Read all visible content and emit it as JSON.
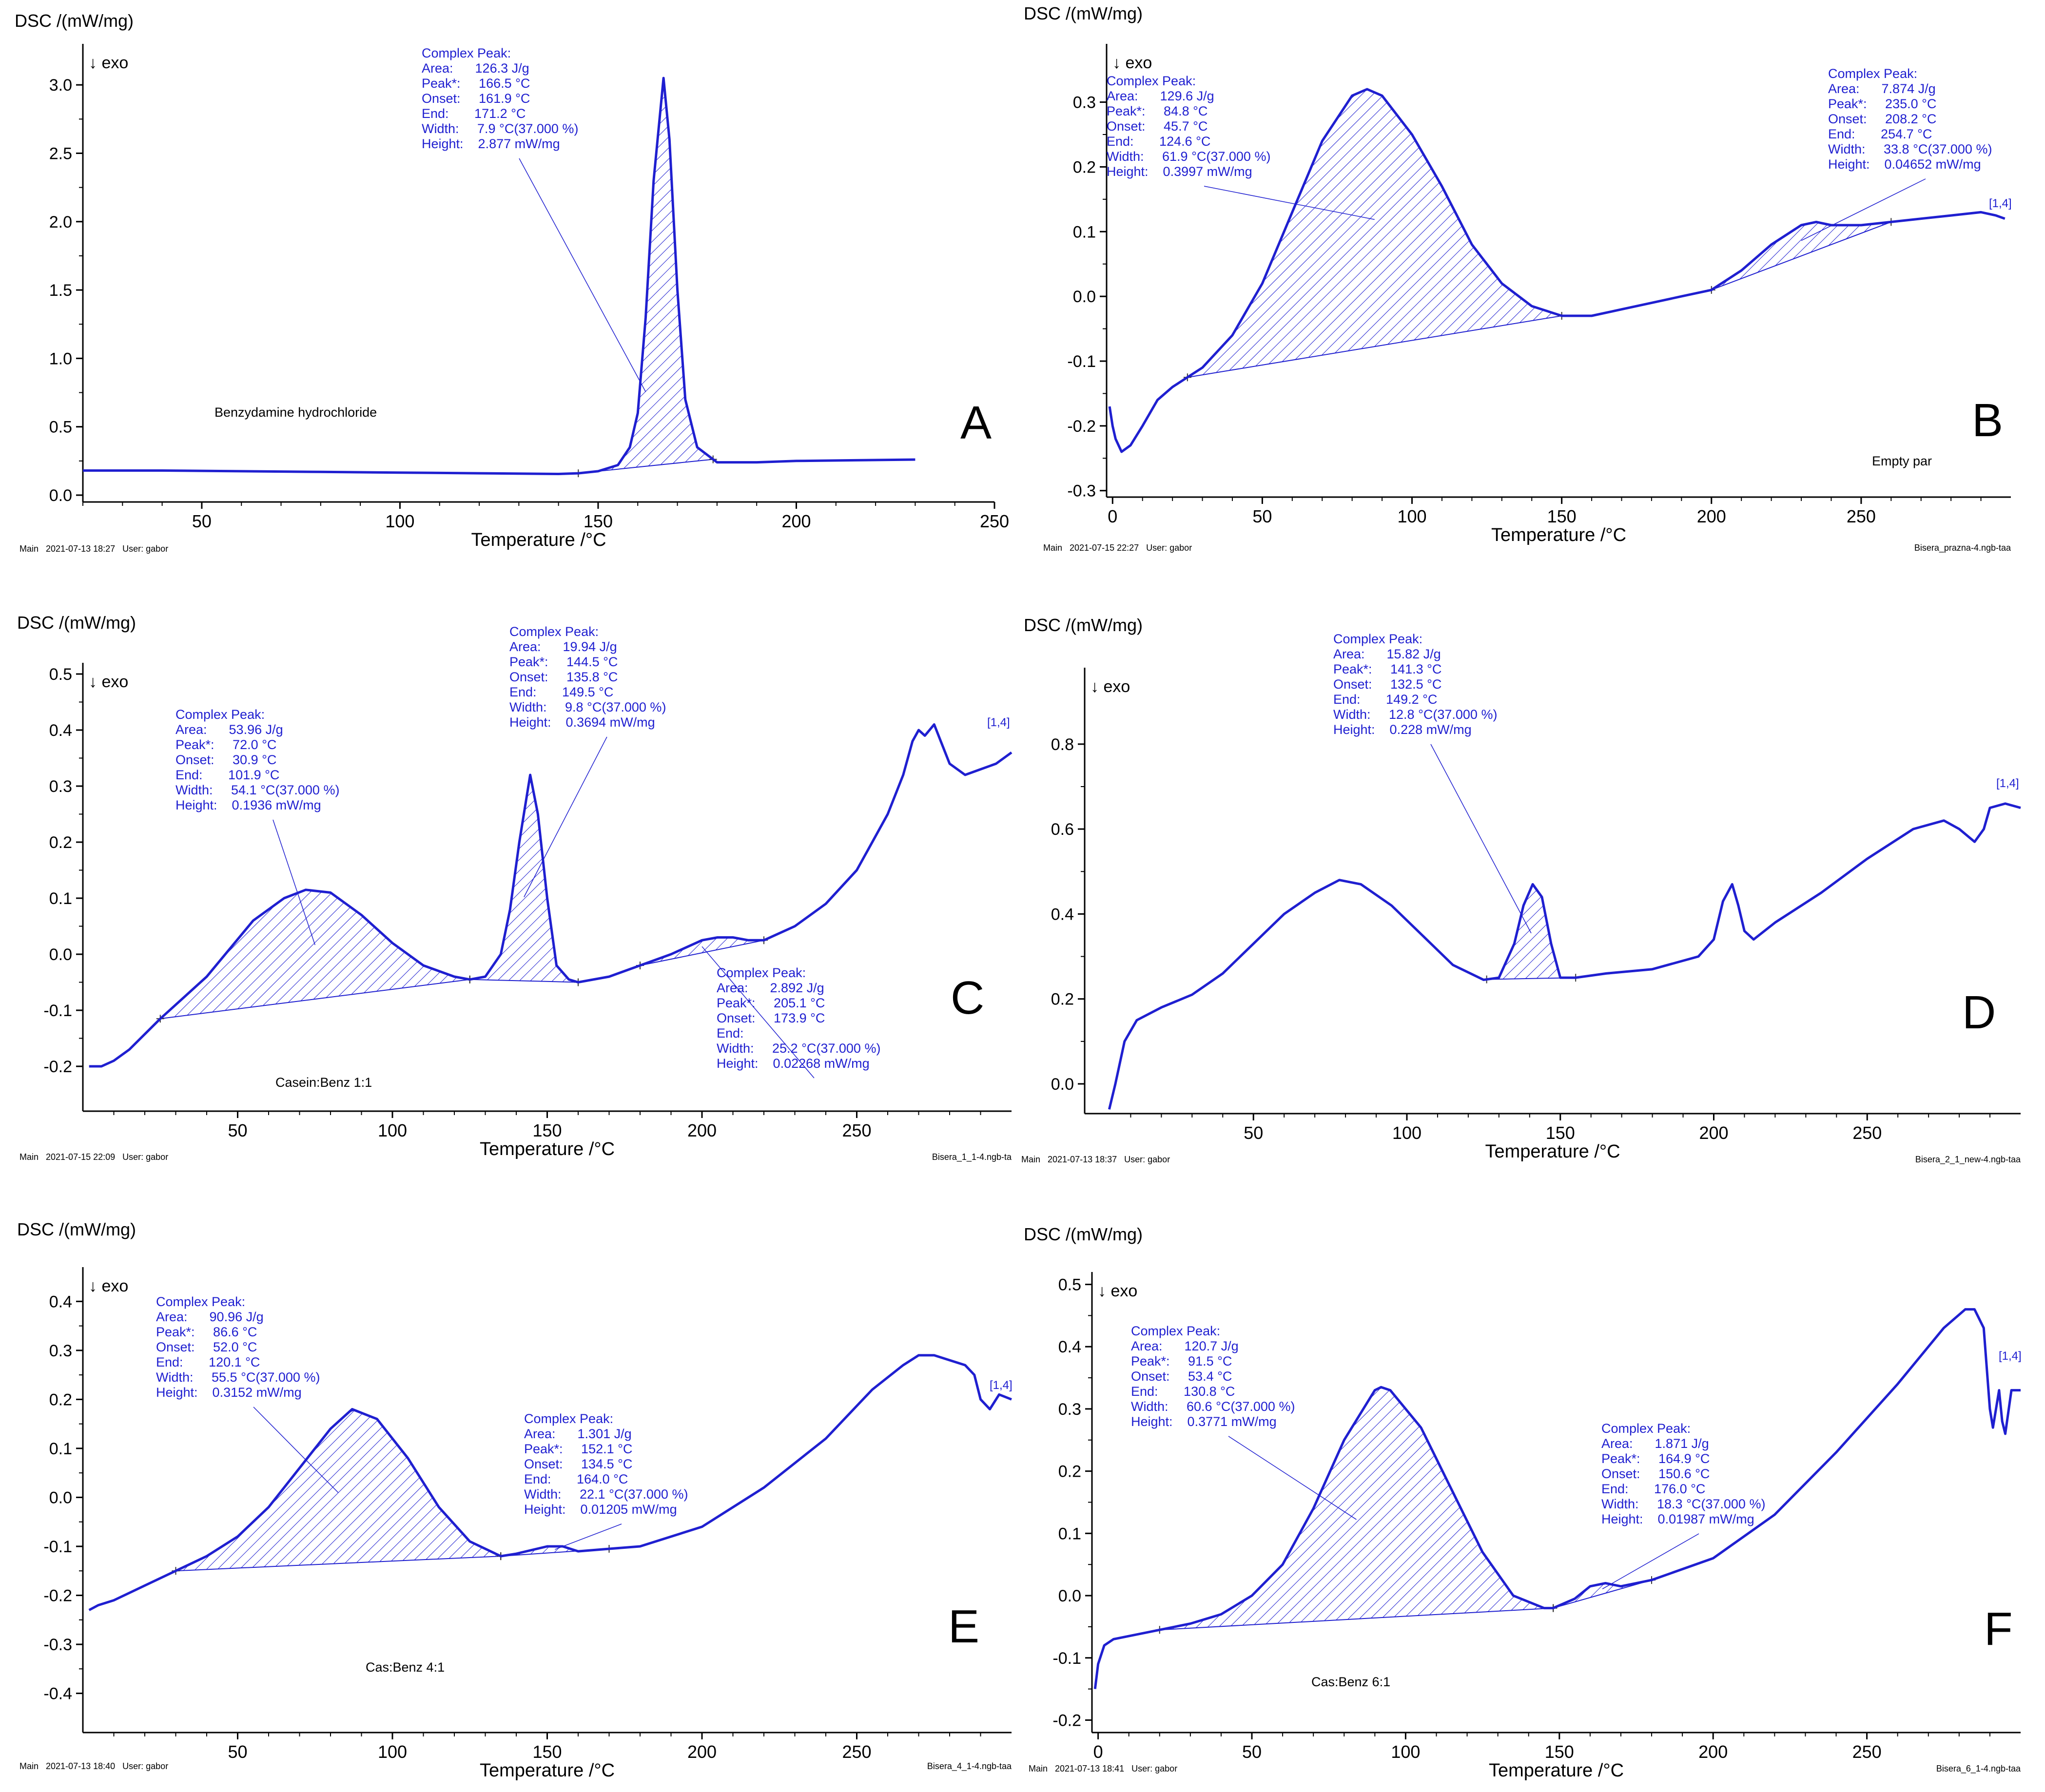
{
  "figure": {
    "accent_color": "#1f1fd0",
    "axis_color": "#000000"
  },
  "chart_data": [
    {
      "type": "line",
      "letter": "A",
      "ylabel": "DSC /(mW/mg)",
      "exo": "↓ exo",
      "xlabel": "Temperature /°C",
      "xlim": [
        20,
        250
      ],
      "ylim": [
        -0.05,
        3.3
      ],
      "xticks": [
        "50",
        "100",
        "150",
        "200",
        "250"
      ],
      "yticks": [
        "0.0",
        "0.5",
        "1.0",
        "1.5",
        "2.0",
        "2.5",
        "3.0"
      ],
      "sample": "Benzydamine hydrochloride",
      "tag": "",
      "footer_left": "Main   2021-07-13 18:27   User: gabor",
      "footer_right": "",
      "x": [
        20,
        40,
        60,
        80,
        100,
        120,
        140,
        145,
        150,
        155,
        158,
        160,
        162,
        164,
        166.5,
        168,
        170,
        172,
        175,
        180,
        190,
        200,
        215,
        230
      ],
      "y": [
        0.18,
        0.18,
        0.175,
        0.17,
        0.165,
        0.16,
        0.155,
        0.16,
        0.175,
        0.22,
        0.35,
        0.6,
        1.3,
        2.3,
        3.05,
        2.6,
        1.5,
        0.7,
        0.35,
        0.24,
        0.24,
        0.25,
        0.255,
        0.26
      ],
      "peaks": [
        {
          "region": [
            145,
            179
          ],
          "annotation": [
            "Complex Peak:",
            "Area:      126.3 J/g",
            "Peak*:     166.5 °C",
            "Onset:     161.9 °C",
            "End:       171.2 °C",
            "Width:     7.9 °C(37.000 %)",
            "Height:    2.877 mW/mg"
          ]
        }
      ]
    },
    {
      "type": "line",
      "letter": "B",
      "ylabel": "DSC /(mW/mg)",
      "exo": "↓ exo",
      "xlabel": "Temperature /°C",
      "xlim": [
        -2,
        300
      ],
      "ylim": [
        -0.31,
        0.39
      ],
      "xticks": [
        "0",
        "50",
        "100",
        "150",
        "200",
        "250"
      ],
      "yticks": [
        "-0.3",
        "-0.2",
        "-0.1",
        "0.0",
        "0.1",
        "0.2",
        "0.3"
      ],
      "sample": "Empty par",
      "tag": "[1,4]",
      "footer_left": "Main   2021-07-15 22:27   User: gabor",
      "footer_right": "Bisera_prazna-4.ngb-taa",
      "x": [
        -1,
        0,
        1,
        3,
        6,
        10,
        15,
        20,
        25,
        30,
        40,
        50,
        60,
        70,
        80,
        85,
        90,
        100,
        110,
        120,
        130,
        140,
        150,
        160,
        170,
        180,
        190,
        200,
        210,
        220,
        230,
        235,
        240,
        250,
        260,
        270,
        280,
        290,
        295,
        298
      ],
      "y": [
        -0.17,
        -0.2,
        -0.22,
        -0.24,
        -0.23,
        -0.2,
        -0.16,
        -0.14,
        -0.125,
        -0.11,
        -0.06,
        0.02,
        0.13,
        0.24,
        0.31,
        0.32,
        0.31,
        0.25,
        0.17,
        0.08,
        0.02,
        -0.015,
        -0.03,
        -0.03,
        -0.02,
        -0.01,
        0.0,
        0.01,
        0.04,
        0.08,
        0.11,
        0.115,
        0.11,
        0.11,
        0.115,
        0.12,
        0.125,
        0.13,
        0.125,
        0.12
      ],
      "peaks": [
        {
          "region": [
            25,
            150
          ],
          "annotation": [
            "Complex Peak:",
            "Area:      129.6 J/g",
            "Peak*:     84.8 °C",
            "Onset:     45.7 °C",
            "End:       124.6 °C",
            "Width:     61.9 °C(37.000 %)",
            "Height:    0.3997 mW/mg"
          ]
        },
        {
          "region": [
            200,
            260
          ],
          "annotation": [
            "Complex Peak:",
            "Area:      7.874 J/g",
            "Peak*:     235.0 °C",
            "Onset:     208.2 °C",
            "End:       254.7 °C",
            "Width:     33.8 °C(37.000 %)",
            "Height:    0.04652 mW/mg"
          ]
        }
      ]
    },
    {
      "type": "line",
      "letter": "C",
      "ylabel": "DSC /(mW/mg)",
      "exo": "↓ exo",
      "xlabel": "Temperature /°C",
      "xlim": [
        0,
        300
      ],
      "ylim": [
        -0.28,
        0.52
      ],
      "xticks": [
        "50",
        "100",
        "150",
        "200",
        "250"
      ],
      "yticks": [
        "-0.2",
        "-0.1",
        "0.0",
        "0.1",
        "0.2",
        "0.3",
        "0.4",
        "0.5"
      ],
      "sample": "Casein:Benz 1:1",
      "tag": "[1,4]",
      "footer_left": "Main   2021-07-15 22:09   User: gabor",
      "footer_right": "Bisera_1_1-4.ngb-ta",
      "x": [
        2,
        6,
        10,
        15,
        25,
        40,
        55,
        65,
        72,
        80,
        90,
        100,
        110,
        120,
        125,
        130,
        135,
        138,
        141,
        144.5,
        147,
        150,
        153,
        157,
        160,
        170,
        180,
        190,
        200,
        205,
        210,
        215,
        220,
        230,
        240,
        250,
        255,
        260,
        265,
        268,
        270,
        272,
        275,
        280,
        285,
        290,
        295,
        300
      ],
      "y": [
        -0.2,
        -0.2,
        -0.19,
        -0.17,
        -0.115,
        -0.04,
        0.06,
        0.1,
        0.115,
        0.11,
        0.07,
        0.02,
        -0.02,
        -0.04,
        -0.045,
        -0.04,
        0.0,
        0.08,
        0.2,
        0.32,
        0.25,
        0.1,
        -0.02,
        -0.045,
        -0.05,
        -0.04,
        -0.02,
        0.0,
        0.025,
        0.03,
        0.03,
        0.025,
        0.025,
        0.05,
        0.09,
        0.15,
        0.2,
        0.25,
        0.32,
        0.38,
        0.4,
        0.39,
        0.41,
        0.34,
        0.32,
        0.33,
        0.34,
        0.36
      ],
      "peaks": [
        {
          "region": [
            25,
            125
          ],
          "annotation": [
            "Complex Peak:",
            "Area:      53.96 J/g",
            "Peak*:     72.0 °C",
            "Onset:     30.9 °C",
            "End:       101.9 °C",
            "Width:     54.1 °C(37.000 %)",
            "Height:    0.1936 mW/mg"
          ]
        },
        {
          "region": [
            125,
            160
          ],
          "annotation": [
            "Complex Peak:",
            "Area:      19.94 J/g",
            "Peak*:     144.5 °C",
            "Onset:     135.8 °C",
            "End:       149.5 °C",
            "Width:     9.8 °C(37.000 %)",
            "Height:    0.3694 mW/mg"
          ]
        },
        {
          "region": [
            180,
            220
          ],
          "annotation": [
            "Complex Peak:",
            "Area:      2.892 J/g",
            "Peak*:     205.1 °C",
            "Onset:     173.9 °C",
            "End:       ",
            "Width:     25.2 °C(37.000 %)",
            "Height:    0.02268 mW/mg"
          ]
        }
      ]
    },
    {
      "type": "line",
      "letter": "D",
      "ylabel": "DSC /(mW/mg)",
      "exo": "↓ exo",
      "xlabel": "Temperature /°C",
      "xlim": [
        -5,
        300
      ],
      "ylim": [
        -0.07,
        0.98
      ],
      "xticks": [
        "50",
        "100",
        "150",
        "200",
        "250"
      ],
      "yticks": [
        "0.0",
        "0.2",
        "0.4",
        "0.6",
        "0.8"
      ],
      "sample": "",
      "tag": "[1,4]",
      "footer_left": "Main   2021-07-13 18:37   User: gabor",
      "footer_right": "Bisera_2_1_new-4.ngb-taa",
      "x": [
        3,
        5,
        8,
        12,
        20,
        30,
        40,
        50,
        60,
        70,
        78,
        85,
        95,
        105,
        115,
        125,
        130,
        135,
        138,
        141,
        144,
        147,
        150,
        155,
        165,
        180,
        195,
        200,
        203,
        206,
        208,
        210,
        213,
        220,
        235,
        250,
        265,
        275,
        280,
        285,
        288,
        290,
        295,
        300
      ],
      "y": [
        -0.06,
        0.0,
        0.1,
        0.15,
        0.18,
        0.21,
        0.26,
        0.33,
        0.4,
        0.45,
        0.48,
        0.47,
        0.42,
        0.35,
        0.28,
        0.245,
        0.25,
        0.33,
        0.42,
        0.47,
        0.44,
        0.33,
        0.25,
        0.25,
        0.26,
        0.27,
        0.3,
        0.34,
        0.43,
        0.47,
        0.42,
        0.36,
        0.34,
        0.38,
        0.45,
        0.53,
        0.6,
        0.62,
        0.6,
        0.57,
        0.6,
        0.65,
        0.66,
        0.65
      ],
      "peaks": [
        {
          "region": [
            126,
            155
          ],
          "annotation": [
            "Complex Peak:",
            "Area:      15.82 J/g",
            "Peak*:     141.3 °C",
            "Onset:     132.5 °C",
            "End:       149.2 °C",
            "Width:     12.8 °C(37.000 %)",
            "Height:    0.228 mW/mg"
          ]
        }
      ]
    },
    {
      "type": "line",
      "letter": "E",
      "ylabel": "DSC /(mW/mg)",
      "exo": "↓ exo",
      "xlabel": "Temperature /°C",
      "xlim": [
        0,
        300
      ],
      "ylim": [
        -0.48,
        0.47
      ],
      "xticks": [
        "50",
        "100",
        "150",
        "200",
        "250"
      ],
      "yticks": [
        "-0.4",
        "-0.3",
        "-0.2",
        "-0.1",
        "0.0",
        "0.1",
        "0.2",
        "0.3",
        "0.4"
      ],
      "sample": "Cas:Benz 4:1",
      "tag": "[1,4]",
      "footer_left": "Main   2021-07-13 18:40   User: gabor",
      "footer_right": "Bisera_4_1-4.ngb-taa",
      "x": [
        2,
        5,
        10,
        20,
        30,
        40,
        50,
        60,
        70,
        80,
        87,
        95,
        105,
        115,
        125,
        135,
        140,
        150,
        155,
        160,
        170,
        180,
        200,
        220,
        240,
        255,
        265,
        270,
        275,
        280,
        285,
        288,
        290,
        293,
        296,
        300
      ],
      "y": [
        -0.23,
        -0.22,
        -0.21,
        -0.18,
        -0.15,
        -0.12,
        -0.08,
        -0.02,
        0.06,
        0.14,
        0.18,
        0.16,
        0.08,
        -0.02,
        -0.09,
        -0.12,
        -0.115,
        -0.1,
        -0.1,
        -0.11,
        -0.105,
        -0.1,
        -0.06,
        0.02,
        0.12,
        0.22,
        0.27,
        0.29,
        0.29,
        0.28,
        0.27,
        0.25,
        0.2,
        0.18,
        0.21,
        0.2
      ],
      "peaks": [
        {
          "region": [
            30,
            135
          ],
          "annotation": [
            "Complex Peak:",
            "Area:      90.96 J/g",
            "Peak*:     86.6 °C",
            "Onset:     52.0 °C",
            "End:       120.1 °C",
            "Width:     55.5 °C(37.000 %)",
            "Height:    0.3152 mW/mg"
          ]
        },
        {
          "region": [
            135,
            170
          ],
          "annotation": [
            "Complex Peak:",
            "Area:      1.301 J/g",
            "Peak*:     152.1 °C",
            "Onset:     134.5 °C",
            "End:       164.0 °C",
            "Width:     22.1 °C(37.000 %)",
            "Height:    0.01205 mW/mg"
          ]
        }
      ]
    },
    {
      "type": "line",
      "letter": "F",
      "ylabel": "DSC /(mW/mg)",
      "exo": "↓ exo",
      "xlabel": "Temperature /°C",
      "xlim": [
        -2,
        300
      ],
      "ylim": [
        -0.22,
        0.52
      ],
      "xticks": [
        "0",
        "50",
        "100",
        "150",
        "200",
        "250"
      ],
      "yticks": [
        "-0.2",
        "-0.1",
        "0.0",
        "0.1",
        "0.2",
        "0.3",
        "0.4",
        "0.5"
      ],
      "sample": "Cas:Benz 6:1",
      "tag": "[1,4]",
      "footer_left": "Main   2021-07-13 18:41   User: gabor",
      "footer_right": "Bisera_6_1-4.ngb-taa",
      "x": [
        -1,
        0,
        2,
        5,
        10,
        20,
        30,
        40,
        50,
        60,
        70,
        80,
        90,
        92,
        95,
        105,
        115,
        125,
        135,
        145,
        148,
        155,
        160,
        165,
        170,
        180,
        200,
        220,
        240,
        260,
        275,
        282,
        285,
        288,
        290,
        291,
        293,
        294,
        295,
        297,
        300
      ],
      "y": [
        -0.15,
        -0.11,
        -0.08,
        -0.07,
        -0.065,
        -0.055,
        -0.045,
        -0.03,
        0.0,
        0.05,
        0.14,
        0.25,
        0.33,
        0.335,
        0.33,
        0.27,
        0.17,
        0.07,
        0.0,
        -0.02,
        -0.02,
        -0.005,
        0.015,
        0.02,
        0.015,
        0.025,
        0.06,
        0.13,
        0.23,
        0.34,
        0.43,
        0.46,
        0.46,
        0.43,
        0.3,
        0.27,
        0.33,
        0.28,
        0.26,
        0.33,
        0.33
      ],
      "peaks": [
        {
          "region": [
            20,
            148
          ],
          "annotation": [
            "Complex Peak:",
            "Area:      120.7 J/g",
            "Peak*:     91.5 °C",
            "Onset:     53.4 °C",
            "End:       130.8 °C",
            "Width:     60.6 °C(37.000 %)",
            "Height:    0.3771 mW/mg"
          ]
        },
        {
          "region": [
            148,
            180
          ],
          "annotation": [
            "Complex Peak:",
            "Area:      1.871 J/g",
            "Peak*:     164.9 °C",
            "Onset:     150.6 °C",
            "End:       176.0 °C",
            "Width:     18.3 °C(37.000 %)",
            "Height:    0.01987 mW/mg"
          ]
        }
      ]
    }
  ]
}
